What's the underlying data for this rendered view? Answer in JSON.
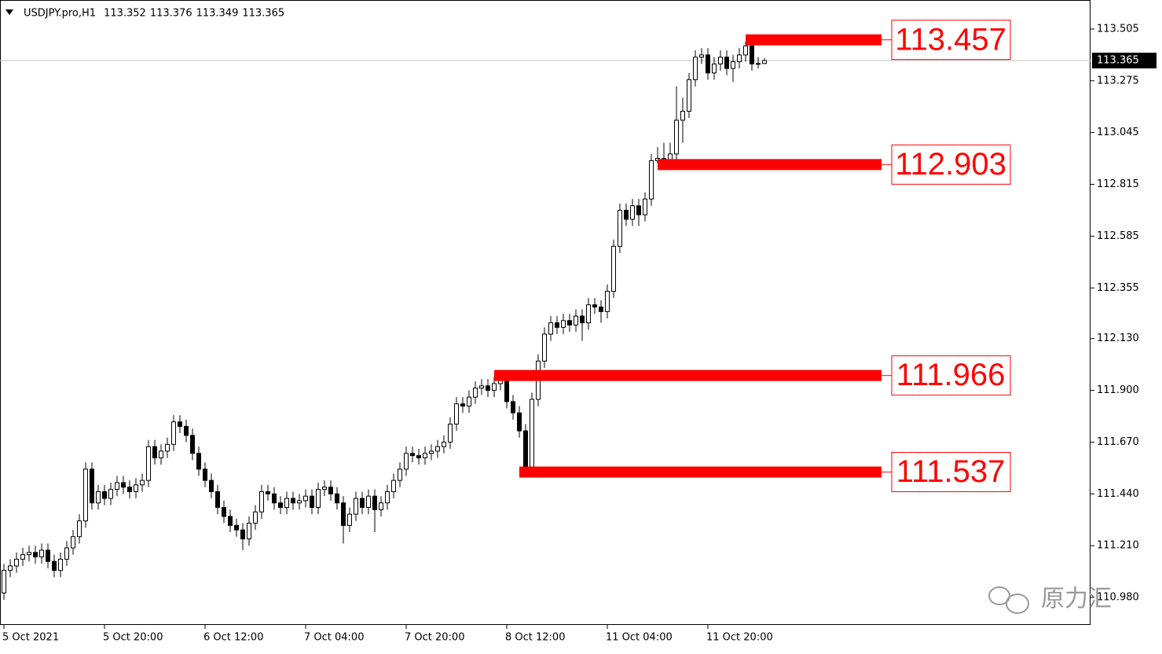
{
  "chart_data": {
    "type": "candlestick",
    "symbol": "USDJPY.pro,H1",
    "categories": [
      "5 Oct 2021",
      null,
      null,
      null,
      null,
      null,
      null,
      null,
      null,
      null,
      null,
      null,
      null,
      null,
      null,
      null,
      "5 Oct 20:00",
      null,
      null,
      null,
      null,
      null,
      null,
      null,
      null,
      null,
      null,
      null,
      null,
      null,
      null,
      null,
      "6 Oct 12:00",
      null,
      null,
      null,
      null,
      null,
      null,
      null,
      null,
      null,
      null,
      null,
      null,
      null,
      null,
      null,
      "7 Oct 04:00",
      null,
      null,
      null,
      null,
      null,
      null,
      null,
      null,
      null,
      null,
      null,
      null,
      null,
      null,
      null,
      "7 Oct 20:00",
      null,
      null,
      null,
      null,
      null,
      null,
      null,
      null,
      null,
      null,
      null,
      null,
      null,
      null,
      null,
      "8 Oct 12:00",
      null,
      null,
      null,
      null,
      null,
      null,
      null,
      null,
      null,
      null,
      null,
      null,
      null,
      null,
      null,
      "11 Oct 04:00",
      null,
      null,
      null,
      null,
      null,
      null,
      null,
      null,
      null,
      null,
      null,
      null,
      null,
      null,
      null,
      "11 Oct 20:00",
      null,
      null,
      null,
      null,
      null,
      null,
      null,
      null,
      null
    ],
    "open": [
      111.0,
      111.1,
      111.12,
      111.15,
      111.17,
      111.18,
      111.16,
      111.19,
      111.14,
      111.1,
      111.15,
      111.2,
      111.25,
      111.32,
      111.55,
      111.4,
      111.45,
      111.42,
      111.46,
      111.49,
      111.47,
      111.45,
      111.48,
      111.5,
      111.65,
      111.6,
      111.63,
      111.66,
      111.76,
      111.74,
      111.7,
      111.62,
      111.55,
      111.5,
      111.45,
      111.38,
      111.34,
      111.3,
      111.28,
      111.24,
      111.31,
      111.36,
      111.45,
      111.44,
      111.4,
      111.38,
      111.42,
      111.4,
      111.41,
      111.43,
      111.38,
      111.46,
      111.47,
      111.44,
      111.4,
      111.3,
      111.35,
      111.42,
      111.38,
      111.43,
      111.37,
      111.4,
      111.45,
      111.5,
      111.55,
      111.62,
      111.61,
      111.6,
      111.62,
      111.63,
      111.65,
      111.67,
      111.75,
      111.84,
      111.83,
      111.87,
      111.91,
      111.92,
      111.9,
      111.93,
      111.96,
      111.85,
      111.8,
      111.72,
      111.56,
      111.86,
      112.03,
      112.15,
      112.2,
      112.18,
      112.21,
      112.19,
      112.23,
      112.2,
      112.28,
      112.27,
      112.25,
      112.34,
      112.54,
      112.7,
      112.66,
      112.72,
      112.68,
      112.75,
      112.92,
      112.93,
      112.91,
      112.95,
      113.1,
      113.14,
      113.28,
      113.38,
      113.39,
      113.31,
      113.35,
      113.38,
      113.33,
      113.36,
      113.39,
      113.43,
      113.35,
      113.352
    ],
    "high": [
      111.13,
      111.15,
      111.18,
      111.2,
      111.21,
      111.21,
      111.22,
      111.22,
      111.17,
      111.18,
      111.23,
      111.28,
      111.35,
      111.58,
      111.58,
      111.48,
      111.48,
      111.49,
      111.52,
      111.52,
      111.5,
      111.51,
      111.53,
      111.68,
      111.68,
      111.66,
      111.69,
      111.79,
      111.79,
      111.77,
      111.73,
      111.65,
      111.58,
      111.53,
      111.48,
      111.41,
      111.37,
      111.33,
      111.31,
      111.34,
      111.39,
      111.48,
      111.48,
      111.47,
      111.43,
      111.45,
      111.45,
      111.44,
      111.46,
      111.46,
      111.49,
      111.5,
      111.5,
      111.47,
      111.43,
      111.38,
      111.45,
      111.45,
      111.46,
      111.46,
      111.43,
      111.48,
      111.53,
      111.58,
      111.65,
      111.65,
      111.64,
      111.65,
      111.66,
      111.68,
      111.7,
      111.78,
      111.87,
      111.87,
      111.9,
      111.94,
      111.95,
      111.95,
      111.96,
      111.966,
      111.96,
      111.88,
      111.83,
      111.75,
      111.89,
      112.06,
      112.18,
      112.23,
      112.23,
      112.24,
      112.24,
      112.26,
      112.26,
      112.31,
      112.31,
      112.3,
      112.37,
      112.57,
      112.73,
      112.73,
      112.75,
      112.75,
      112.78,
      112.95,
      112.98,
      113.0,
      113.0,
      113.25,
      113.2,
      113.31,
      113.41,
      113.42,
      113.42,
      113.38,
      113.41,
      113.41,
      113.39,
      113.42,
      113.45,
      113.457,
      113.38,
      113.376
    ],
    "low": [
      110.97,
      111.07,
      111.09,
      111.12,
      111.14,
      111.13,
      111.13,
      111.11,
      111.07,
      111.07,
      111.12,
      111.17,
      111.22,
      111.29,
      111.37,
      111.37,
      111.39,
      111.39,
      111.43,
      111.44,
      111.42,
      111.42,
      111.45,
      111.47,
      111.57,
      111.57,
      111.6,
      111.63,
      111.71,
      111.67,
      111.59,
      111.52,
      111.47,
      111.42,
      111.35,
      111.31,
      111.27,
      111.25,
      111.19,
      111.21,
      111.28,
      111.33,
      111.41,
      111.37,
      111.35,
      111.35,
      111.37,
      111.37,
      111.38,
      111.35,
      111.35,
      111.43,
      111.41,
      111.37,
      111.22,
      111.27,
      111.32,
      111.35,
      111.35,
      111.27,
      111.34,
      111.37,
      111.42,
      111.47,
      111.52,
      111.58,
      111.57,
      111.57,
      111.59,
      111.6,
      111.62,
      111.64,
      111.72,
      111.8,
      111.8,
      111.84,
      111.88,
      111.87,
      111.87,
      111.9,
      111.82,
      111.77,
      111.69,
      111.537,
      111.54,
      111.83,
      112.0,
      112.12,
      112.15,
      112.15,
      112.16,
      112.16,
      112.12,
      112.17,
      112.24,
      112.2,
      112.22,
      112.31,
      112.51,
      112.63,
      112.63,
      112.63,
      112.65,
      112.72,
      112.91,
      112.903,
      112.91,
      112.92,
      113.0,
      113.11,
      113.25,
      113.35,
      113.28,
      113.28,
      113.32,
      113.3,
      113.27,
      113.33,
      113.36,
      113.32,
      113.33,
      113.349
    ],
    "close": [
      111.1,
      111.12,
      111.15,
      111.17,
      111.18,
      111.16,
      111.19,
      111.14,
      111.1,
      111.15,
      111.2,
      111.25,
      111.32,
      111.55,
      111.4,
      111.45,
      111.42,
      111.46,
      111.49,
      111.47,
      111.45,
      111.48,
      111.5,
      111.65,
      111.6,
      111.63,
      111.66,
      111.76,
      111.74,
      111.7,
      111.62,
      111.55,
      111.5,
      111.45,
      111.38,
      111.34,
      111.3,
      111.28,
      111.24,
      111.31,
      111.36,
      111.45,
      111.44,
      111.4,
      111.38,
      111.42,
      111.4,
      111.41,
      111.43,
      111.38,
      111.46,
      111.47,
      111.44,
      111.4,
      111.3,
      111.35,
      111.42,
      111.38,
      111.43,
      111.37,
      111.4,
      111.45,
      111.5,
      111.55,
      111.62,
      111.61,
      111.6,
      111.62,
      111.63,
      111.65,
      111.67,
      111.75,
      111.84,
      111.83,
      111.87,
      111.91,
      111.92,
      111.9,
      111.93,
      111.96,
      111.85,
      111.8,
      111.72,
      111.56,
      111.86,
      112.03,
      112.15,
      112.2,
      112.18,
      112.21,
      112.19,
      112.23,
      112.2,
      112.28,
      112.27,
      112.25,
      112.34,
      112.54,
      112.7,
      112.66,
      112.72,
      112.68,
      112.75,
      112.92,
      112.93,
      112.91,
      112.95,
      113.1,
      113.14,
      113.28,
      113.38,
      113.39,
      113.31,
      113.35,
      113.38,
      113.33,
      113.36,
      113.39,
      113.43,
      113.35,
      113.352,
      113.365
    ],
    "ylim": [
      110.858,
      113.634
    ],
    "yticks": [
      113.505,
      113.275,
      113.045,
      112.815,
      112.585,
      112.355,
      {
        "value": 112.13,
        "label": "112.130"
      },
      {
        "value": 111.9,
        "label": "111.900"
      },
      {
        "value": 111.67,
        "label": "111.670"
      },
      {
        "value": 111.44,
        "label": "111.440"
      },
      {
        "value": 111.21,
        "label": "111.210"
      },
      {
        "value": 110.98,
        "label": "110.980"
      }
    ],
    "levels": [
      113.457,
      112.903,
      111.966,
      111.537
    ],
    "level_color": "#ff0000",
    "up_color": "#ffffff",
    "down_color": "#000000",
    "watermark": "原力汇"
  }
}
